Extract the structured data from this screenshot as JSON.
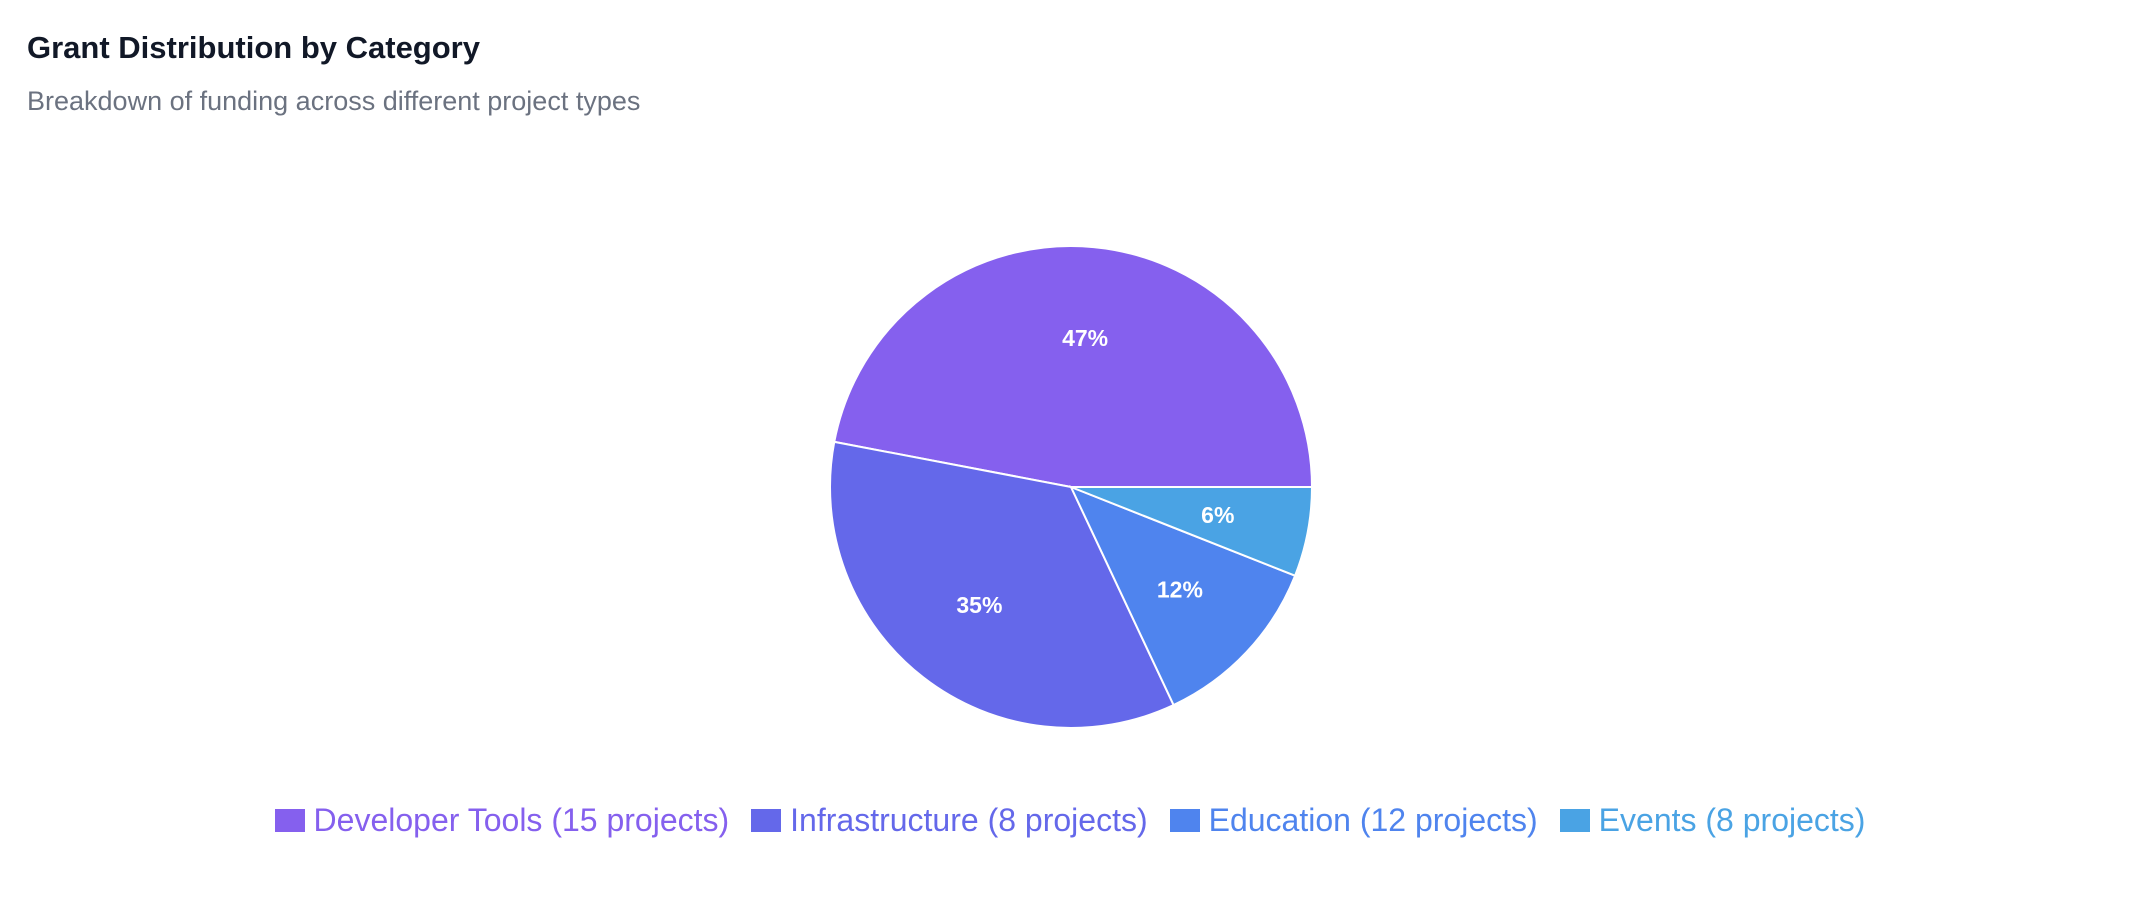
{
  "header": {
    "title": "Grant Distribution by Category",
    "subtitle": "Breakdown of funding across different project types"
  },
  "chart_data": {
    "type": "pie",
    "title": "Grant Distribution by Category",
    "subtitle": "Breakdown of funding across different project types",
    "legend_position": "bottom",
    "slices": [
      {
        "legend": "Developer Tools (15 projects)",
        "value": 47,
        "label": "47%",
        "color": "#8560ee"
      },
      {
        "legend": "Infrastructure (8 projects)",
        "value": 35,
        "label": "35%",
        "color": "#6468ea"
      },
      {
        "legend": "Education (12 projects)",
        "value": 12,
        "label": "12%",
        "color": "#4f84ee"
      },
      {
        "legend": "Events (8 projects)",
        "value": 6,
        "label": "6%",
        "color": "#4aa3e4"
      }
    ]
  }
}
